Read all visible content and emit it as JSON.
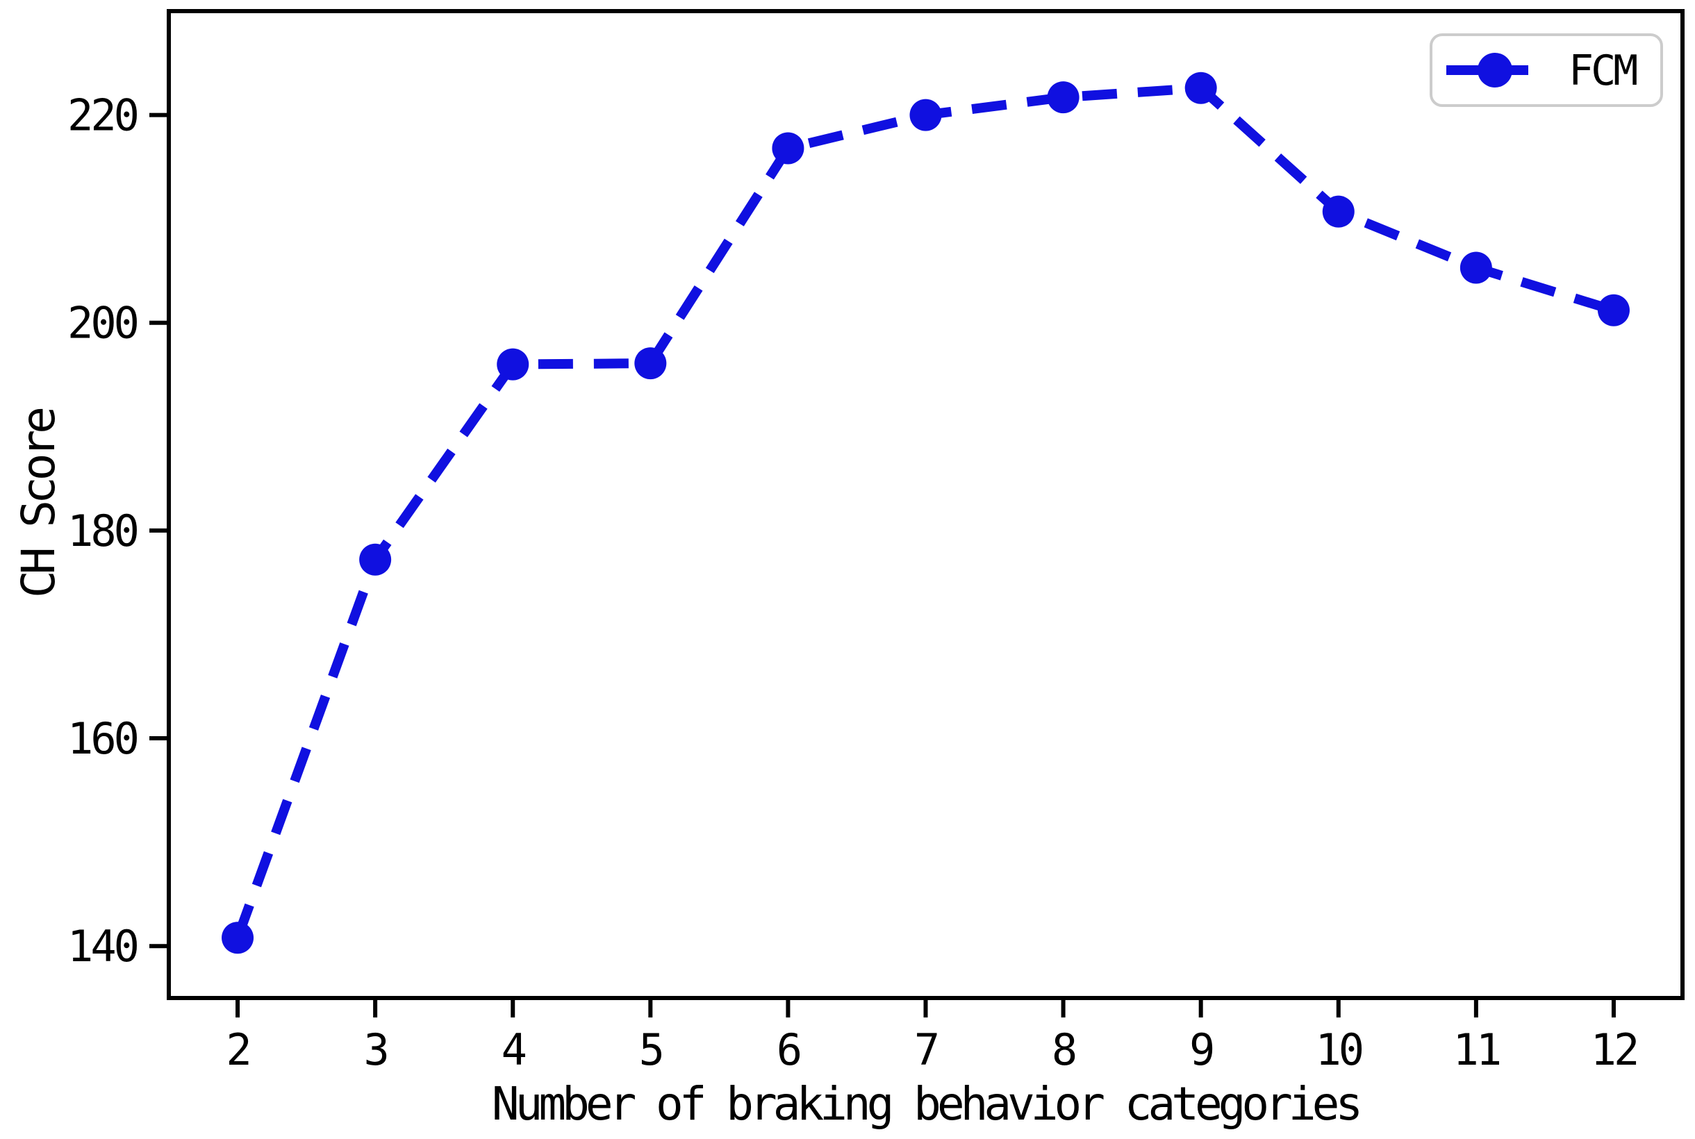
{
  "figure": {
    "background_color": "#ffffff",
    "frame_color": "#000000"
  },
  "chart_data": {
    "type": "line",
    "title": "",
    "xlabel": "Number of braking behavior categories",
    "ylabel": "CH Score",
    "x": [
      2,
      3,
      4,
      5,
      6,
      7,
      8,
      9,
      10,
      11,
      12
    ],
    "series": [
      {
        "name": "FCM",
        "color": "#1010e0",
        "linestyle": "dashed",
        "marker": "circle",
        "values": [
          140.8,
          177.2,
          196.0,
          196.1,
          216.8,
          220.0,
          221.7,
          222.6,
          210.7,
          205.3,
          201.2
        ]
      }
    ],
    "xticks": [
      2,
      3,
      4,
      5,
      6,
      7,
      8,
      9,
      10,
      11,
      12
    ],
    "yticks": [
      140,
      160,
      180,
      200,
      220
    ],
    "xlim": [
      1.5,
      12.5
    ],
    "ylim": [
      135,
      230
    ],
    "grid": false,
    "legend": {
      "position": "upper right",
      "entries": [
        "FCM"
      ],
      "border_color": "#cccccc"
    }
  }
}
